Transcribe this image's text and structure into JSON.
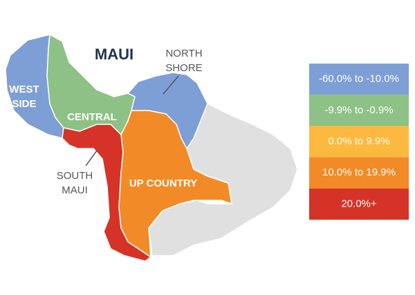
{
  "title": "MAUI",
  "regions": [
    {
      "label": [
        "WEST",
        "SIDE"
      ],
      "color": "#7e9fd5"
    },
    {
      "label": [
        "CENTRAL"
      ],
      "color": "#8dc185"
    },
    {
      "label": [
        "NORTH",
        "SHORE"
      ],
      "color": "#7e9fd5"
    },
    {
      "label": [
        "SOUTH",
        "MAUI"
      ],
      "color": "#d63328"
    },
    {
      "label": [
        "UP COUNTRY"
      ],
      "color": "#f28b27"
    }
  ],
  "legend": [
    {
      "label": "-60.0% to -10.0%",
      "color": "#7e9fd5"
    },
    {
      "label": "-9.9% to -0.9%",
      "color": "#8dc185"
    },
    {
      "label": "0.0% to 9.9%",
      "color": "#fdb93f"
    },
    {
      "label": "10.0% to 19.9%",
      "color": "#f28b27"
    },
    {
      "label": "20.0%+",
      "color": "#d63328"
    }
  ]
}
